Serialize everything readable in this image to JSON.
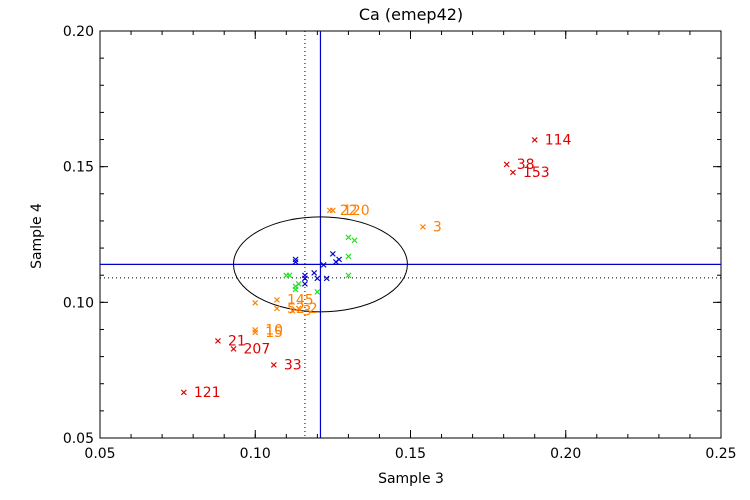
{
  "chart_data": {
    "type": "scatter",
    "title": "Ca (emep42)",
    "xlabel": "Sample 3",
    "ylabel": "Sample 4",
    "xlim": [
      0.05,
      0.25
    ],
    "ylim": [
      0.05,
      0.2
    ],
    "x_ticks": [
      "0.05",
      "0.10",
      "0.15",
      "0.20",
      "0.25"
    ],
    "y_ticks": [
      "0.05",
      "0.10",
      "0.15",
      "0.20"
    ],
    "x_tick_values": [
      0.05,
      0.1,
      0.15,
      0.2,
      0.25
    ],
    "y_tick_values": [
      0.05,
      0.1,
      0.15,
      0.2
    ],
    "reference_lines": {
      "mean_x": 0.121,
      "mean_y": 0.114,
      "median_x": 0.116,
      "median_y": 0.109
    },
    "ellipse": {
      "cx": 0.121,
      "cy": 0.114,
      "rx": 0.028,
      "ry": 0.0175
    },
    "marker_glyph": "×",
    "colors": {
      "red": "#e00000",
      "orange": "#ff8000",
      "green": "#22dd22",
      "blue": "#0000cc",
      "line": "#0000cc",
      "axis": "#000000"
    },
    "series": [
      {
        "name": "red",
        "points": [
          {
            "x": 0.19,
            "y": 0.16,
            "label": "114"
          },
          {
            "x": 0.181,
            "y": 0.151,
            "label": "38"
          },
          {
            "x": 0.183,
            "y": 0.148,
            "label": "153"
          },
          {
            "x": 0.088,
            "y": 0.086,
            "label": "21"
          },
          {
            "x": 0.093,
            "y": 0.083,
            "label": "207"
          },
          {
            "x": 0.106,
            "y": 0.077,
            "label": "33"
          },
          {
            "x": 0.077,
            "y": 0.067,
            "label": "121"
          }
        ]
      },
      {
        "name": "orange",
        "points": [
          {
            "x": 0.124,
            "y": 0.134,
            "label": "22"
          },
          {
            "x": 0.125,
            "y": 0.134,
            "label": "120"
          },
          {
            "x": 0.154,
            "y": 0.128,
            "label": "3"
          },
          {
            "x": 0.1,
            "y": 0.1,
            "label": ""
          },
          {
            "x": 0.107,
            "y": 0.101,
            "label": "145"
          },
          {
            "x": 0.107,
            "y": 0.098,
            "label": "52"
          },
          {
            "x": 0.112,
            "y": 0.097,
            "label": "3"
          },
          {
            "x": 0.114,
            "y": 0.098,
            "label": "2"
          },
          {
            "x": 0.1,
            "y": 0.09,
            "label": "10"
          },
          {
            "x": 0.1,
            "y": 0.089,
            "label": "15"
          }
        ]
      },
      {
        "name": "green",
        "points": [
          {
            "x": 0.13,
            "y": 0.124,
            "label": ""
          },
          {
            "x": 0.132,
            "y": 0.123,
            "label": ""
          },
          {
            "x": 0.13,
            "y": 0.117,
            "label": ""
          },
          {
            "x": 0.11,
            "y": 0.11,
            "label": ""
          },
          {
            "x": 0.111,
            "y": 0.11,
            "label": ""
          },
          {
            "x": 0.13,
            "y": 0.11,
            "label": ""
          },
          {
            "x": 0.113,
            "y": 0.106,
            "label": ""
          },
          {
            "x": 0.113,
            "y": 0.105,
            "label": ""
          },
          {
            "x": 0.114,
            "y": 0.107,
            "label": ""
          },
          {
            "x": 0.12,
            "y": 0.104,
            "label": ""
          }
        ]
      },
      {
        "name": "blue",
        "points": [
          {
            "x": 0.113,
            "y": 0.116,
            "label": ""
          },
          {
            "x": 0.113,
            "y": 0.115,
            "label": ""
          },
          {
            "x": 0.125,
            "y": 0.118,
            "label": ""
          },
          {
            "x": 0.127,
            "y": 0.116,
            "label": ""
          },
          {
            "x": 0.126,
            "y": 0.115,
            "label": ""
          },
          {
            "x": 0.122,
            "y": 0.114,
            "label": ""
          },
          {
            "x": 0.119,
            "y": 0.111,
            "label": ""
          },
          {
            "x": 0.116,
            "y": 0.11,
            "label": ""
          },
          {
            "x": 0.116,
            "y": 0.109,
            "label": ""
          },
          {
            "x": 0.12,
            "y": 0.109,
            "label": ""
          },
          {
            "x": 0.123,
            "y": 0.109,
            "label": ""
          },
          {
            "x": 0.116,
            "y": 0.107,
            "label": ""
          }
        ]
      }
    ]
  }
}
